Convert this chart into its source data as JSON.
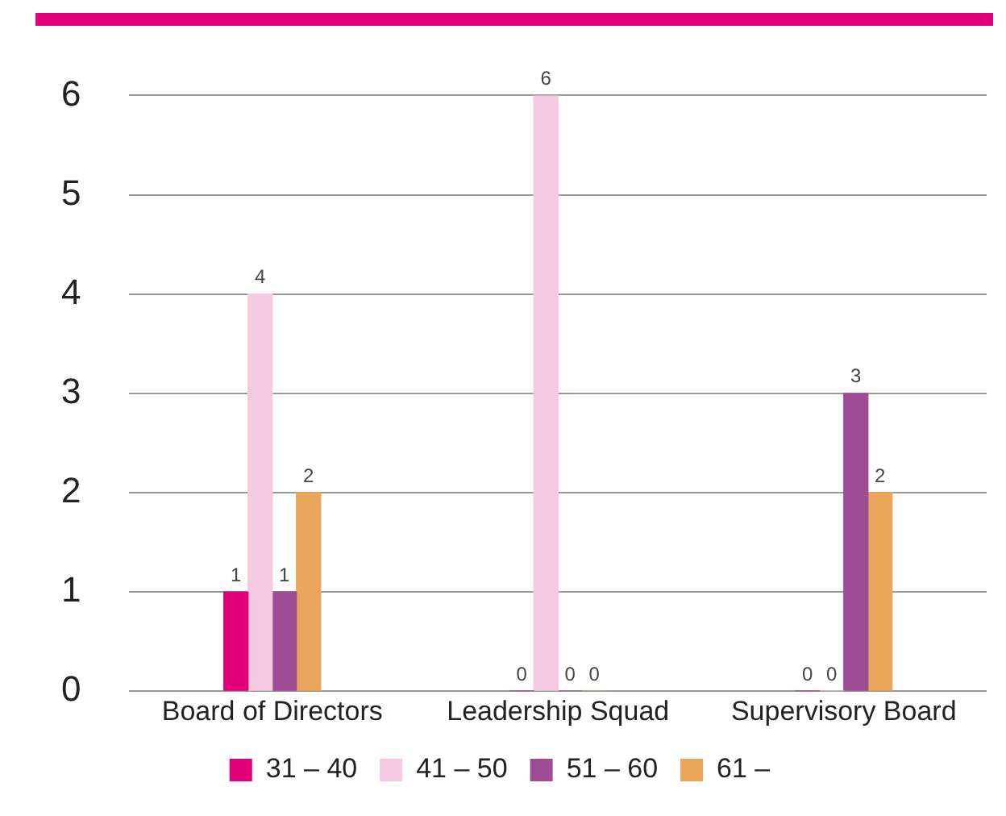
{
  "chart_data": {
    "type": "bar",
    "categories": [
      "Board of Directors",
      "Leadership Squad",
      "Supervisory Board"
    ],
    "series": [
      {
        "name": "31 – 40",
        "color": "#e2007a",
        "values": [
          1,
          0,
          0
        ]
      },
      {
        "name": "41 – 50",
        "color": "#f5c9df",
        "values": [
          4,
          6,
          0
        ]
      },
      {
        "name": "51 – 60",
        "color": "#9e4c94",
        "values": [
          1,
          0,
          3
        ]
      },
      {
        "name": "61 –",
        "color": "#eba55a",
        "values": [
          2,
          0,
          2
        ]
      }
    ],
    "ylim": [
      0,
      6
    ],
    "yticks": [
      0,
      1,
      2,
      3,
      4,
      5,
      6
    ],
    "grid": "y",
    "legend": "bottom",
    "data_labels": true
  }
}
